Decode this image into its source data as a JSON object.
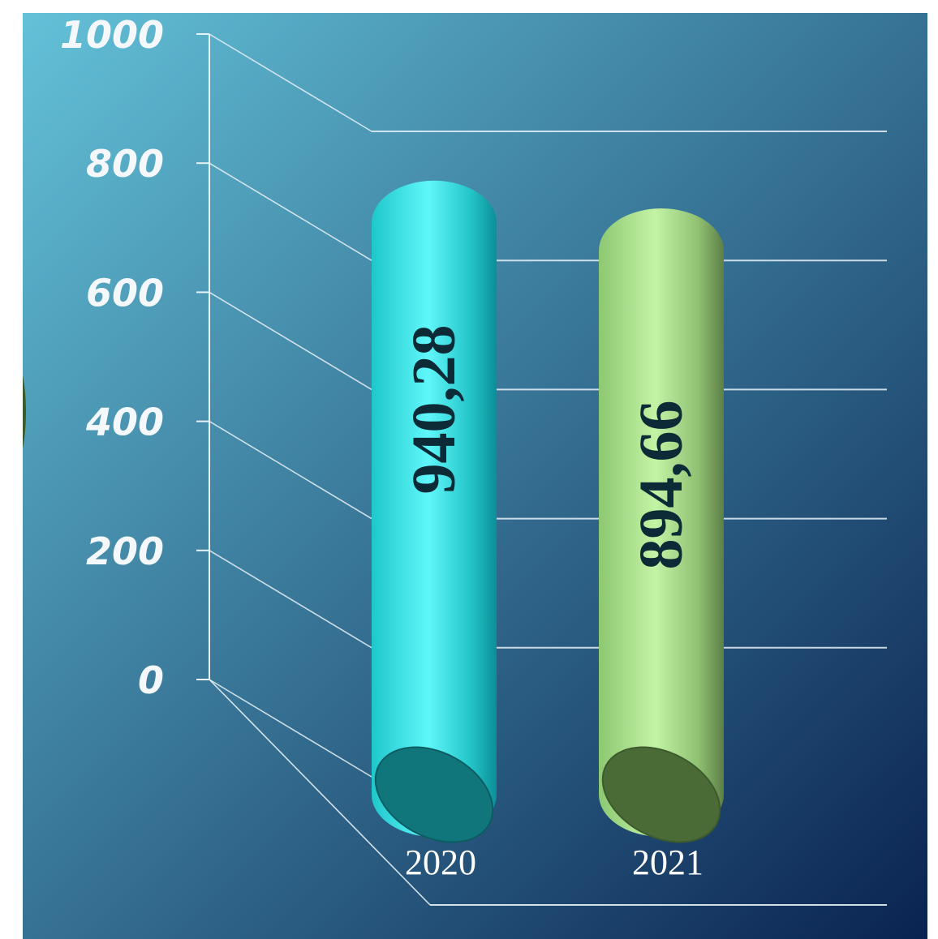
{
  "chart_data": {
    "type": "bar",
    "title": "",
    "xlabel": "",
    "ylabel": "",
    "categories": [
      "2020",
      "2021"
    ],
    "values": [
      940.28,
      894.66
    ],
    "value_labels": [
      "940,28",
      "894,66"
    ],
    "y_ticks": [
      "0",
      "200",
      "400",
      "600",
      "800",
      "1000"
    ],
    "ylim": [
      0,
      1000
    ],
    "grid": true,
    "legend": "none",
    "style": "3d-cylinder",
    "colors": {
      "bar_2020": "#2ee6ea",
      "bar_2021": "#a6dc8a",
      "value_label": "#0c2b36",
      "axis": "#e8f2f6",
      "tick_label": "#f4f8fa",
      "category_label": "#ffffff",
      "background_light": "#63c1d8",
      "background_dark": "#0a2350"
    }
  }
}
